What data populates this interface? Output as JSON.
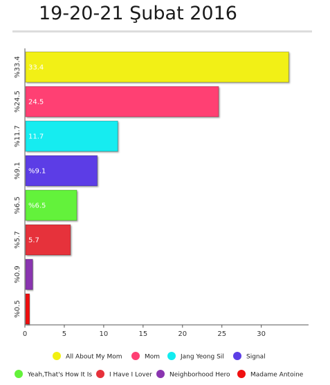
{
  "title": "19-20-21 Şubat 2016",
  "colors": {
    "axis": "#555555",
    "divider": "#dcdcdc"
  },
  "chart_data": {
    "type": "bar",
    "orientation": "horizontal",
    "categories": [
      "%33.4",
      "%24.5",
      "%11.7",
      "%9.1",
      "%6.5",
      "%5.7",
      "%0.9",
      "%0.5"
    ],
    "values": [
      33.4,
      24.5,
      11.7,
      9.1,
      6.5,
      5.7,
      0.9,
      0.5
    ],
    "value_labels": [
      "33.4",
      "24.5",
      "11.7",
      "%9.1",
      "%6.5",
      "5.7",
      "",
      ""
    ],
    "series_names": [
      "All About My Mom",
      "Mom",
      "Jang Yeong Sil",
      "Signal",
      "Yeah,That's How It Is",
      "I Have I Lover",
      "Neighborhood Hero",
      "Madame Antoine"
    ],
    "series_colors": [
      "#f2f012",
      "#ff3f73",
      "#12ecf0",
      "#5c3ee6",
      "#63f23a",
      "#e6313a",
      "#8a35b0",
      "#f01010"
    ],
    "xlim": [
      0,
      36
    ],
    "xticks": [
      0,
      5,
      10,
      15,
      20,
      25,
      30
    ],
    "legend_position": "bottom",
    "grid": false
  }
}
